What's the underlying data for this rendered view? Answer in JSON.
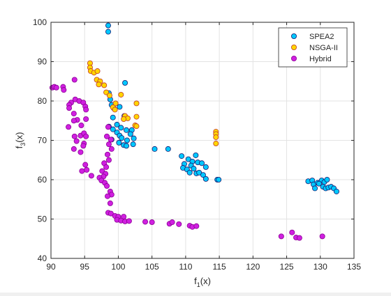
{
  "chart_data": {
    "type": "scatter",
    "title": "",
    "xlabel": {
      "base": "f",
      "sub": "1",
      "rest": "(x)"
    },
    "ylabel": {
      "base": "f",
      "sub": "3",
      "rest": "(x)"
    },
    "xlim": [
      90,
      135
    ],
    "ylim": [
      40,
      100
    ],
    "xticks": [
      90,
      95,
      100,
      105,
      110,
      115,
      120,
      125,
      130,
      135
    ],
    "yticks": [
      40,
      50,
      60,
      70,
      80,
      90,
      100
    ],
    "grid": true,
    "legend_position": "top-right",
    "series": [
      {
        "name": "SPEA2",
        "color": "#00c8ff",
        "edge": "#1a1a6e",
        "points": [
          [
            98.5,
            99.2
          ],
          [
            98.5,
            97.6
          ],
          [
            98.6,
            82.0
          ],
          [
            98.8,
            80.4
          ],
          [
            99.0,
            79.0
          ],
          [
            99.3,
            78.2
          ],
          [
            101.0,
            84.6
          ],
          [
            100.2,
            78.5
          ],
          [
            100.9,
            76.2
          ],
          [
            99.2,
            75.8
          ],
          [
            99.8,
            74.0
          ],
          [
            100.4,
            73.2
          ],
          [
            101.2,
            72.6
          ],
          [
            102.0,
            72.6
          ],
          [
            98.6,
            73.5
          ],
          [
            99.2,
            72.8
          ],
          [
            99.8,
            72.0
          ],
          [
            100.2,
            71.2
          ],
          [
            99.0,
            70.2
          ],
          [
            100.5,
            70.6
          ],
          [
            101.3,
            70.0
          ],
          [
            101.8,
            71.6
          ],
          [
            100.1,
            69.4
          ],
          [
            100.8,
            68.8
          ],
          [
            101.2,
            68.6
          ],
          [
            102.2,
            69.0
          ],
          [
            102.3,
            70.5
          ],
          [
            105.4,
            67.8
          ],
          [
            107.4,
            67.8
          ],
          [
            109.4,
            66.0
          ],
          [
            110.4,
            65.2
          ],
          [
            111.0,
            64.6
          ],
          [
            111.5,
            66.2
          ],
          [
            109.8,
            64.0
          ],
          [
            110.8,
            63.6
          ],
          [
            111.2,
            62.8
          ],
          [
            111.8,
            64.4
          ],
          [
            112.4,
            64.2
          ],
          [
            113.0,
            63.2
          ],
          [
            109.6,
            63.0
          ],
          [
            110.2,
            62.6
          ],
          [
            110.6,
            61.8
          ],
          [
            111.6,
            61.6
          ],
          [
            112.0,
            61.8
          ],
          [
            112.6,
            61.2
          ],
          [
            113.0,
            60.2
          ],
          [
            114.7,
            60.0
          ],
          [
            114.9,
            60.0
          ],
          [
            128.2,
            59.6
          ],
          [
            128.8,
            59.8
          ],
          [
            129.0,
            58.8
          ],
          [
            129.2,
            57.8
          ],
          [
            129.6,
            59.2
          ],
          [
            130.2,
            59.8
          ],
          [
            130.6,
            59.4
          ],
          [
            131.0,
            60.0
          ],
          [
            130.4,
            58.2
          ],
          [
            130.8,
            57.8
          ],
          [
            131.2,
            58.0
          ],
          [
            131.6,
            58.2
          ],
          [
            132.0,
            57.8
          ],
          [
            132.4,
            57.0
          ],
          [
            129.8,
            59.0
          ]
        ]
      },
      {
        "name": "NSGA-II",
        "color": "#ffd500",
        "edge": "#c0392b",
        "points": [
          [
            95.8,
            89.6
          ],
          [
            95.8,
            88.5
          ],
          [
            95.9,
            87.6
          ],
          [
            96.4,
            87.2
          ],
          [
            96.9,
            87.6
          ],
          [
            96.8,
            85.4
          ],
          [
            97.3,
            85.0
          ],
          [
            97.1,
            84.2
          ],
          [
            97.9,
            84.0
          ],
          [
            98.2,
            82.2
          ],
          [
            98.7,
            81.4
          ],
          [
            100.4,
            81.6
          ],
          [
            102.7,
            79.4
          ],
          [
            99.6,
            79.4
          ],
          [
            99.2,
            78.4
          ],
          [
            99.5,
            77.8
          ],
          [
            101.0,
            76.2
          ],
          [
            101.4,
            75.6
          ],
          [
            102.7,
            76.0
          ],
          [
            100.8,
            75.4
          ],
          [
            102.5,
            73.8
          ],
          [
            102.7,
            73.6
          ],
          [
            114.5,
            72.2
          ],
          [
            114.5,
            71.6
          ],
          [
            114.5,
            70.8
          ],
          [
            114.5,
            69.2
          ]
        ]
      },
      {
        "name": "Hybrid",
        "color": "#d020e0",
        "edge": "#8a0094",
        "points": [
          [
            90.2,
            83.4
          ],
          [
            90.5,
            83.6
          ],
          [
            90.8,
            83.4
          ],
          [
            91.8,
            83.6
          ],
          [
            91.9,
            82.8
          ],
          [
            93.5,
            85.4
          ],
          [
            93.0,
            79.6
          ],
          [
            92.7,
            79.0
          ],
          [
            92.7,
            78.2
          ],
          [
            93.6,
            80.4
          ],
          [
            94.2,
            80.0
          ],
          [
            94.8,
            79.6
          ],
          [
            95.1,
            78.6
          ],
          [
            95.2,
            77.8
          ],
          [
            93.4,
            76.8
          ],
          [
            93.9,
            75.2
          ],
          [
            93.4,
            75.0
          ],
          [
            92.6,
            73.4
          ],
          [
            95.2,
            75.4
          ],
          [
            94.5,
            73.8
          ],
          [
            93.5,
            71.0
          ],
          [
            94.4,
            71.2
          ],
          [
            94.9,
            71.8
          ],
          [
            95.2,
            71.0
          ],
          [
            93.8,
            69.8
          ],
          [
            94.9,
            69.2
          ],
          [
            94.8,
            68.6
          ],
          [
            93.4,
            67.8
          ],
          [
            94.4,
            67.0
          ],
          [
            95.1,
            63.8
          ],
          [
            95.3,
            62.5
          ],
          [
            94.6,
            62.2
          ],
          [
            96.0,
            61.0
          ],
          [
            98.5,
            73.4
          ],
          [
            98.3,
            71.0
          ],
          [
            98.9,
            70.2
          ],
          [
            98.6,
            69.0
          ],
          [
            99.0,
            67.8
          ],
          [
            98.4,
            66.4
          ],
          [
            98.6,
            65.0
          ],
          [
            97.9,
            64.2
          ],
          [
            98.2,
            63.2
          ],
          [
            97.6,
            62.2
          ],
          [
            98.1,
            61.5
          ],
          [
            97.8,
            60.8
          ],
          [
            97.2,
            60.5
          ],
          [
            97.5,
            59.8
          ],
          [
            98.0,
            59.2
          ],
          [
            98.3,
            58.4
          ],
          [
            98.8,
            57.0
          ],
          [
            99.0,
            56.2
          ],
          [
            98.4,
            55.8
          ],
          [
            98.8,
            54.0
          ],
          [
            98.5,
            51.6
          ],
          [
            98.9,
            51.4
          ],
          [
            99.5,
            50.8
          ],
          [
            100.0,
            50.6
          ],
          [
            100.8,
            50.6
          ],
          [
            99.8,
            49.8
          ],
          [
            100.4,
            49.6
          ],
          [
            101.0,
            49.4
          ],
          [
            101.6,
            49.5
          ],
          [
            104.0,
            49.3
          ],
          [
            105.0,
            49.2
          ],
          [
            107.6,
            48.8
          ],
          [
            108.0,
            49.2
          ],
          [
            109.0,
            48.7
          ],
          [
            110.6,
            48.3
          ],
          [
            111.0,
            48.0
          ],
          [
            111.6,
            48.2
          ],
          [
            124.2,
            45.6
          ],
          [
            125.8,
            46.6
          ],
          [
            126.4,
            45.3
          ],
          [
            126.9,
            45.2
          ],
          [
            130.3,
            45.6
          ]
        ]
      }
    ]
  }
}
